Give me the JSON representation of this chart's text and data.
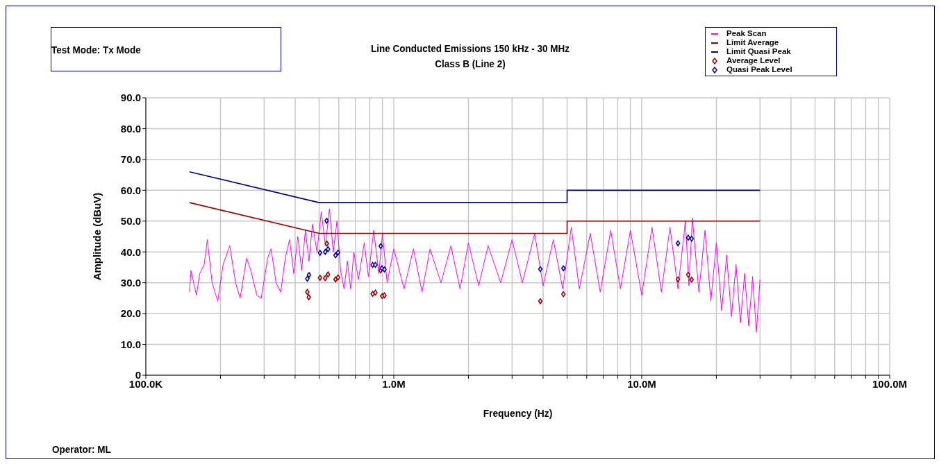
{
  "chart_data": {
    "type": "line",
    "title": "Line Conducted Emissions 150 kHz - 30 MHz",
    "subtitle": "Class B (Line 2)",
    "xlabel": "Frequency (Hz)",
    "ylabel": "Amplitude (dBuV)",
    "annotations": [
      "Test Mode: Tx Mode",
      "Operator: ML"
    ],
    "log": "x",
    "grid": true,
    "legend": "top right",
    "xlim": [
      100000,
      100000000
    ],
    "xticks": [
      {
        "value": 100000,
        "label": "100.0K"
      },
      {
        "value": 200000,
        "label": null
      },
      {
        "value": 300000,
        "label": null
      },
      {
        "value": 400000,
        "label": null
      },
      {
        "value": 500000,
        "label": null
      },
      {
        "value": 600000,
        "label": null
      },
      {
        "value": 700000,
        "label": null
      },
      {
        "value": 800000,
        "label": null
      },
      {
        "value": 900000,
        "label": null
      },
      {
        "value": 1000000,
        "label": "1.0M"
      },
      {
        "value": 2000000,
        "label": null
      },
      {
        "value": 3000000,
        "label": null
      },
      {
        "value": 4000000,
        "label": null
      },
      {
        "value": 5000000,
        "label": null
      },
      {
        "value": 6000000,
        "label": null
      },
      {
        "value": 7000000,
        "label": null
      },
      {
        "value": 8000000,
        "label": null
      },
      {
        "value": 9000000,
        "label": null
      },
      {
        "value": 10000000,
        "label": "10.0M"
      },
      {
        "value": 20000000,
        "label": null
      },
      {
        "value": 30000000,
        "label": null
      },
      {
        "value": 40000000,
        "label": null
      },
      {
        "value": 50000000,
        "label": null
      },
      {
        "value": 60000000,
        "label": null
      },
      {
        "value": 70000000,
        "label": null
      },
      {
        "value": 80000000,
        "label": null
      },
      {
        "value": 90000000,
        "label": null
      },
      {
        "value": 100000000,
        "label": "100.0M"
      }
    ],
    "ylim": [
      0,
      90
    ],
    "yticks": [
      0,
      {
        "value": 10,
        "label": "10.0"
      },
      {
        "value": 20,
        "label": "20.0"
      },
      {
        "value": 30,
        "label": "30.0"
      },
      {
        "value": 40,
        "label": "40.0"
      },
      {
        "value": 50,
        "label": "50.0"
      },
      {
        "value": 60,
        "label": "60.0"
      },
      {
        "value": 70,
        "label": "70.0"
      },
      {
        "value": 80,
        "label": "80.0"
      },
      {
        "value": 90,
        "label": "90.0"
      }
    ],
    "series": [
      {
        "name": "Peak Scan",
        "color": "#ff00ff",
        "x": [
          150000,
          152000,
          160000,
          165000,
          172000,
          177000,
          185000,
          195000,
          205000,
          218000,
          230000,
          240000,
          255000,
          265000,
          280000,
          292000,
          310000,
          320000,
          335000,
          350000,
          365000,
          380000,
          395000,
          410000,
          425000,
          440000,
          455000,
          470000,
          490000,
          510000,
          530000,
          550000,
          570000,
          590000,
          610000,
          630000,
          650000,
          670000,
          690000,
          720000,
          760000,
          790000,
          830000,
          870000,
          900000,
          940000,
          1000000,
          1100000,
          1200000,
          1300000,
          1400000,
          1550000,
          1700000,
          1850000,
          2000000,
          2200000,
          2400000,
          2700000,
          3000000,
          3300000,
          3700000,
          4000000,
          4400000,
          4800000,
          5200000,
          5600000,
          6200000,
          6800000,
          7500000,
          8200000,
          9000000,
          10000000,
          11000000,
          12000000,
          13000000,
          14000000,
          15000000,
          15500000,
          16000000,
          17000000,
          18000000,
          19000000,
          20000000,
          21000000,
          22000000,
          23000000,
          24000000,
          25000000,
          26000000,
          27000000,
          28000000,
          29000000,
          30000000
        ],
        "values": [
          27,
          34,
          26,
          33,
          36,
          44,
          30,
          24,
          36,
          42,
          30,
          25,
          38,
          34,
          26,
          25,
          38,
          41,
          30,
          27,
          38,
          44,
          33,
          45,
          34,
          47,
          37,
          49,
          40,
          53,
          42,
          54,
          40,
          50,
          34,
          28,
          37,
          28,
          40,
          31,
          43,
          32,
          47,
          33,
          46,
          30,
          41,
          28,
          41,
          27,
          41,
          30,
          42,
          28,
          43,
          29,
          42,
          30,
          44,
          30,
          46,
          29,
          44,
          28,
          48,
          28,
          46,
          27,
          47,
          28,
          47,
          26,
          48,
          27,
          48,
          28,
          50,
          29,
          51,
          27,
          47,
          24,
          43,
          21,
          39,
          19,
          36,
          17,
          33,
          16,
          32,
          14,
          31
        ]
      },
      {
        "name": "Limit Average",
        "color": "#990000",
        "x": [
          150000,
          500000,
          5000000,
          5000000,
          30000000
        ],
        "values": [
          56,
          46,
          46,
          50,
          50
        ]
      },
      {
        "name": "Limit Quasi Peak",
        "color": "#000080",
        "x": [
          150000,
          500000,
          5000000,
          5000000,
          30000000
        ],
        "values": [
          66,
          56,
          56,
          60,
          60
        ]
      },
      {
        "name": "Average Level",
        "type": "scatter",
        "marker": "diamond",
        "color": "#990000",
        "x": [
          448000,
          454000,
          504000,
          537000,
          529000,
          543000,
          582000,
          596000,
          822000,
          843000,
          885000,
          898000,
          917000,
          3900000,
          4830000,
          14000000,
          15400000,
          15900000
        ],
        "values": [
          27.0,
          25.3,
          31.6,
          42.7,
          31.5,
          32.7,
          31.1,
          31.7,
          26.4,
          26.8,
          34.0,
          25.7,
          25.9,
          24.0,
          26.3,
          31.1,
          32.6,
          31.0
        ]
      },
      {
        "name": "Quasi Peak Level",
        "type": "scatter",
        "marker": "diamond",
        "color": "#0000aa",
        "x": [
          448000,
          455000,
          504000,
          536000,
          529000,
          543000,
          582000,
          596000,
          822000,
          843000,
          886000,
          895000,
          917000,
          3900000,
          4830000,
          14000000,
          15400000,
          15900000
        ],
        "values": [
          31.3,
          32.5,
          39.7,
          50.1,
          40.0,
          40.9,
          38.9,
          39.8,
          35.8,
          35.8,
          41.9,
          34.7,
          34.3,
          34.4,
          34.7,
          42.8,
          44.6,
          44.3
        ]
      }
    ]
  }
}
